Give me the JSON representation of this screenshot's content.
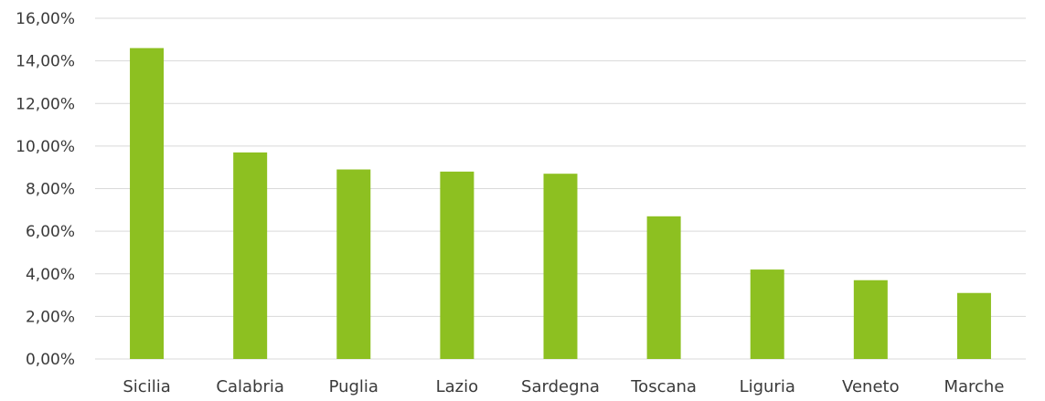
{
  "chart_data": {
    "type": "bar",
    "categories": [
      "Sicilia",
      "Calabria",
      "Puglia",
      "Lazio",
      "Sardegna",
      "Toscana",
      "Liguria",
      "Veneto",
      "Marche"
    ],
    "values": [
      14.6,
      9.7,
      8.9,
      8.8,
      8.7,
      6.7,
      4.2,
      3.7,
      3.1
    ],
    "y_ticks": [
      "0,00%",
      "2,00%",
      "4,00%",
      "6,00%",
      "8,00%",
      "10,00%",
      "12,00%",
      "14,00%",
      "16,00%"
    ],
    "ylim": [
      0,
      16
    ],
    "grid": true,
    "legend": "none",
    "bar_color": "#8dc021",
    "grid_color": "#d9d9d9",
    "title": "",
    "xlabel": "",
    "ylabel": ""
  }
}
